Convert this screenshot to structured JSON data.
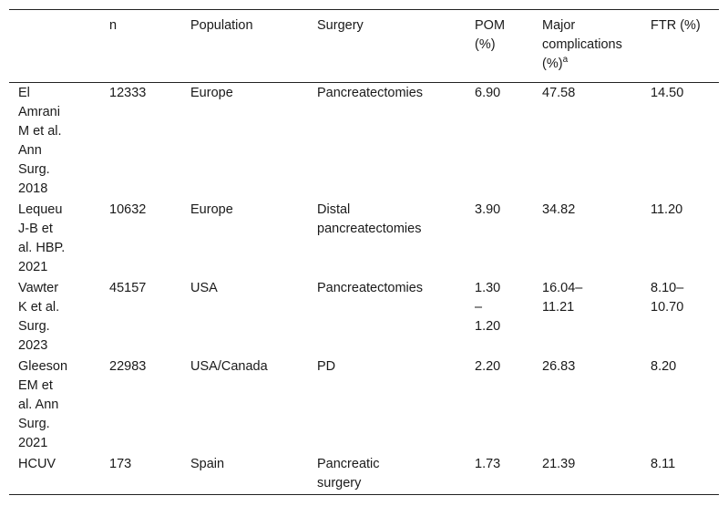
{
  "headers": {
    "study": "",
    "n": "n",
    "population": "Population",
    "surgery": "Surgery",
    "pom_line1": "POM",
    "pom_line2": "(%)",
    "major_line1": "Major",
    "major_line2": "complications",
    "major_line3": "(%)",
    "major_sup": "a",
    "ftr": "FTR (%)"
  },
  "rows": [
    {
      "study": [
        "El",
        "Amrani",
        "M et al.",
        "Ann",
        "Surg.",
        "2018"
      ],
      "n": "12333",
      "population": "Europe",
      "surgery": [
        "Pancreatectomies"
      ],
      "pom": [
        "6.90"
      ],
      "major": [
        "47.58"
      ],
      "ftr": [
        "14.50"
      ]
    },
    {
      "study": [
        "Lequeu",
        "J-B et",
        "al. HBP.",
        "2021"
      ],
      "n": "10632",
      "population": "Europe",
      "surgery": [
        "Distal",
        "pancreatectomies"
      ],
      "pom": [
        "3.90"
      ],
      "major": [
        "34.82"
      ],
      "ftr": [
        "11.20"
      ]
    },
    {
      "study": [
        "Vawter",
        "K et al.",
        "Surg.",
        "2023"
      ],
      "n": "45157",
      "population": "USA",
      "surgery": [
        "Pancreatectomies"
      ],
      "pom": [
        "1.30",
        "–",
        "1.20"
      ],
      "major": [
        "16.04–",
        "11.21"
      ],
      "ftr": [
        "8.10–",
        "10.70"
      ]
    },
    {
      "study": [
        "Gleeson",
        "EM et",
        "al. Ann",
        "Surg.",
        "2021"
      ],
      "n": "22983",
      "population": "USA/Canada",
      "surgery": [
        "PD"
      ],
      "pom": [
        "2.20"
      ],
      "major": [
        "26.83"
      ],
      "ftr": [
        "8.20"
      ]
    },
    {
      "study": [
        "HCUV"
      ],
      "n": "173",
      "population": "Spain",
      "surgery": [
        "Pancreatic",
        "surgery"
      ],
      "pom": [
        "1.73"
      ],
      "major": [
        "21.39"
      ],
      "ftr": [
        "8.11"
      ]
    }
  ]
}
